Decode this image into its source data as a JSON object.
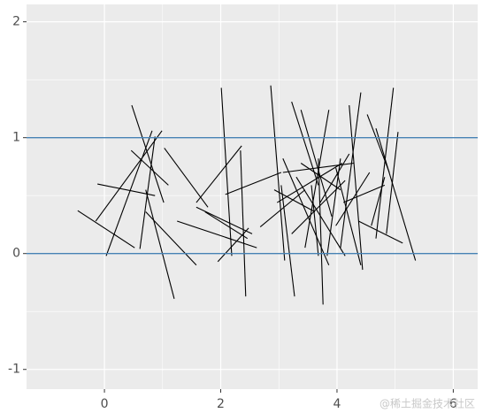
{
  "chart_data": {
    "type": "segment",
    "x0": [
      -0.46,
      -0.12,
      0.47,
      0.99,
      0.82,
      0.46,
      0.71,
      0.61,
      1.03,
      1.58,
      2.01,
      1.25,
      1.73,
      1.58,
      0.71,
      2.34,
      1.95,
      2.08,
      2.86,
      3.04,
      3.22,
      3.38,
      2.68,
      2.97,
      3.07,
      3.3,
      3.45,
      3.68,
      3.71,
      3.83,
      3.98,
      3.98,
      4.21,
      4.41,
      4.52,
      4.67,
      4.82,
      4.97,
      5.05,
      4.37,
      4.11,
      3.07,
      3.56,
      3.22,
      2.92,
      3.38
    ],
    "y0": [
      0.37,
      0.6,
      1.28,
      1.06,
      1.06,
      0.89,
      0.55,
      0.04,
      0.91,
      0.44,
      1.43,
      0.28,
      0.36,
      0.4,
      0.36,
      0.89,
      -0.07,
      0.51,
      1.45,
      0.59,
      1.31,
      1.24,
      0.23,
      0.44,
      0.82,
      0.66,
      0.05,
      0.82,
      0.44,
      -0.02,
      0.24,
      0.74,
      1.28,
      1.39,
      1.2,
      1.08,
      0.66,
      1.43,
      1.05,
      0.28,
      0.44,
      0.7,
      0.59,
      0.17,
      0.55,
      0.78
    ],
    "x1": [
      0.52,
      0.87,
      1.02,
      -0.15,
      0.03,
      1.1,
      1.2,
      0.87,
      1.78,
      2.36,
      2.19,
      2.62,
      2.46,
      2.54,
      1.58,
      2.43,
      2.48,
      3.04,
      3.1,
      3.27,
      3.68,
      3.91,
      3.45,
      4.09,
      3.86,
      4.14,
      3.86,
      3.76,
      4.21,
      4.06,
      4.56,
      4.41,
      4.44,
      4.06,
      4.9,
      5.35,
      4.59,
      4.67,
      4.85,
      5.13,
      4.82,
      4.29,
      3.68,
      4.14,
      3.62,
      4.06
    ],
    "y1": [
      0.05,
      0.5,
      0.44,
      0.28,
      -0.02,
      0.59,
      -0.39,
      1.01,
      0.4,
      0.93,
      -0.02,
      0.05,
      0.13,
      0.17,
      -0.1,
      -0.37,
      0.22,
      0.7,
      -0.06,
      -0.37,
      0.59,
      0.32,
      0.55,
      0.78,
      -0.1,
      -0.02,
      1.24,
      -0.44,
      0.86,
      0.82,
      0.7,
      -0.1,
      -0.14,
      0.05,
      0.7,
      -0.06,
      0.24,
      0.13,
      0.17,
      0.09,
      0.59,
      0.78,
      -0.02,
      0.63,
      0.36,
      0.55
    ],
    "color": "#000000",
    "hlines": [
      0,
      1
    ],
    "hline_color": "#4682b4",
    "xlim": [
      -1.34,
      6.42
    ],
    "ylim": [
      -1.17,
      2.15
    ],
    "xticks": [
      0,
      2,
      4,
      6
    ],
    "yticks": [
      -1,
      0,
      1,
      2
    ],
    "minor_xticks": [
      1,
      3,
      5
    ],
    "minor_yticks": [
      -0.5,
      0.5,
      1.5
    ],
    "grid": true,
    "watermark": "@稀土掘金技术社区"
  }
}
